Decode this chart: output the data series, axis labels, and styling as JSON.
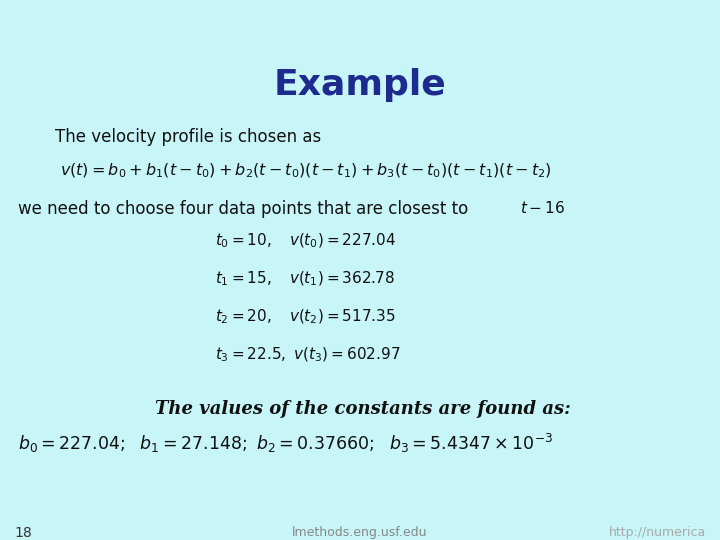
{
  "title": "Example",
  "title_color": "#1e2b8e",
  "background_color": "#c8f5f8",
  "text_dark": "#111111",
  "slide_number": "18",
  "footer_left": "lmethods.eng.usf.edu",
  "footer_right": "http://numerica",
  "line1": "The velocity profile is chosen as",
  "line2_text": "we need to choose four data points that are closest to",
  "line2_math": "$t-16$",
  "constants_header": "The values of the constants are found as:",
  "bg_light": "#d6f5f5"
}
